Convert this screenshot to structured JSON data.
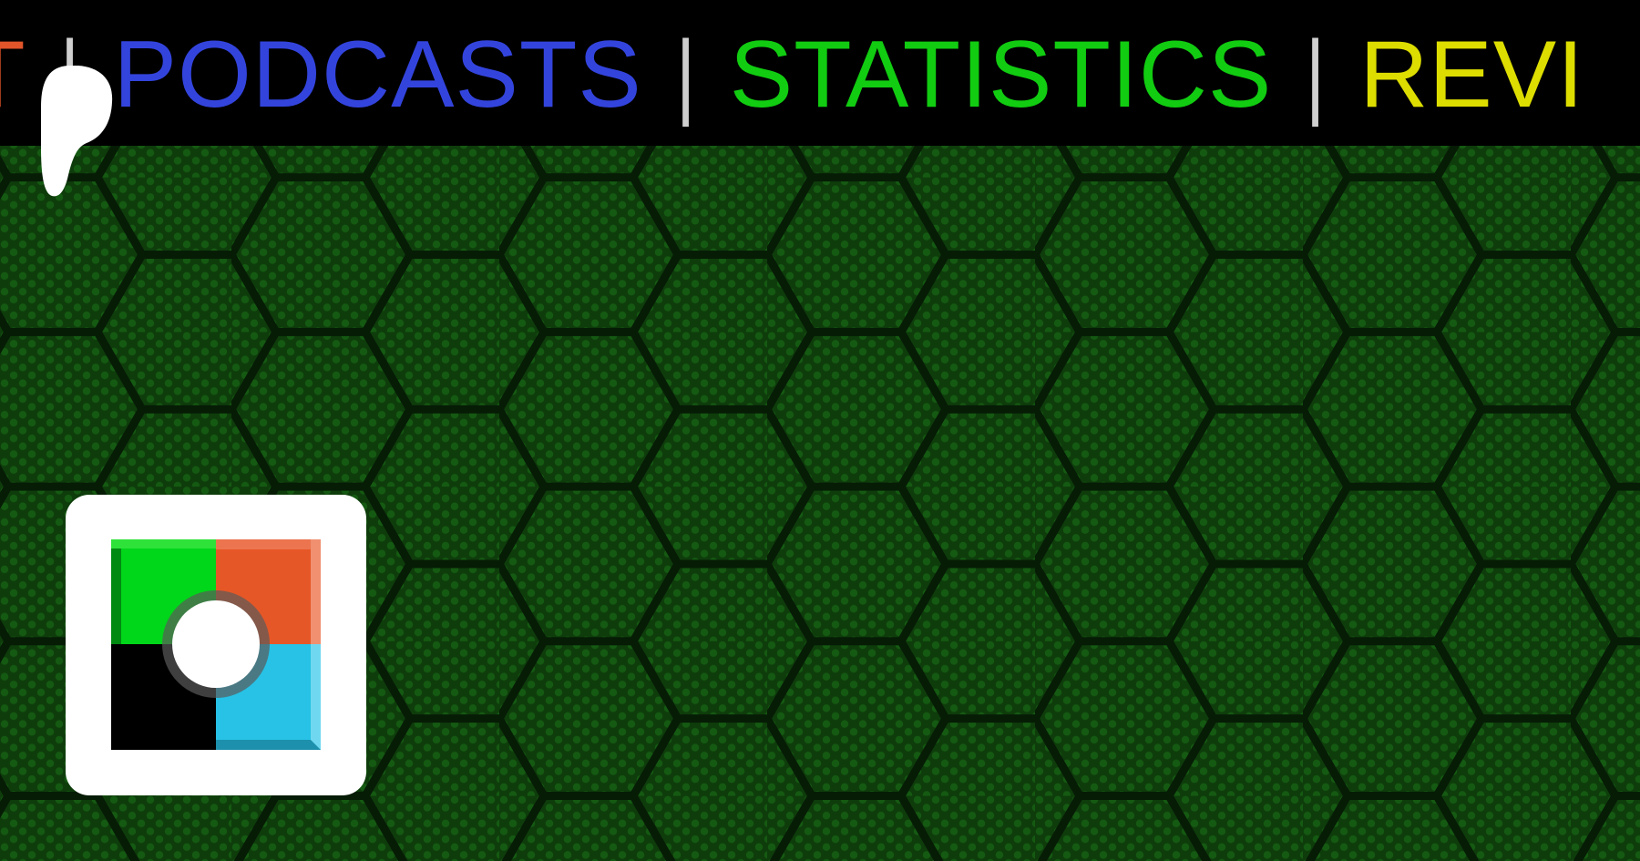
{
  "nav": {
    "items": [
      {
        "label": "HT",
        "color": "#e0552a"
      },
      {
        "label": "PODCASTS",
        "color": "#3344dd"
      },
      {
        "label": "STATISTICS",
        "color": "#11cc11"
      },
      {
        "label": "REVI",
        "color": "#dddd00"
      }
    ],
    "separator": "|"
  },
  "icons": {
    "patreon": "patreon-logo-icon",
    "site_logo": "four-color-square-logo-icon"
  },
  "colors": {
    "background": "#0d3a0a",
    "header": "#000000",
    "logo_green": "#00d61a",
    "logo_orange": "#e65727",
    "logo_black": "#000000",
    "logo_blue": "#27c2e6"
  }
}
